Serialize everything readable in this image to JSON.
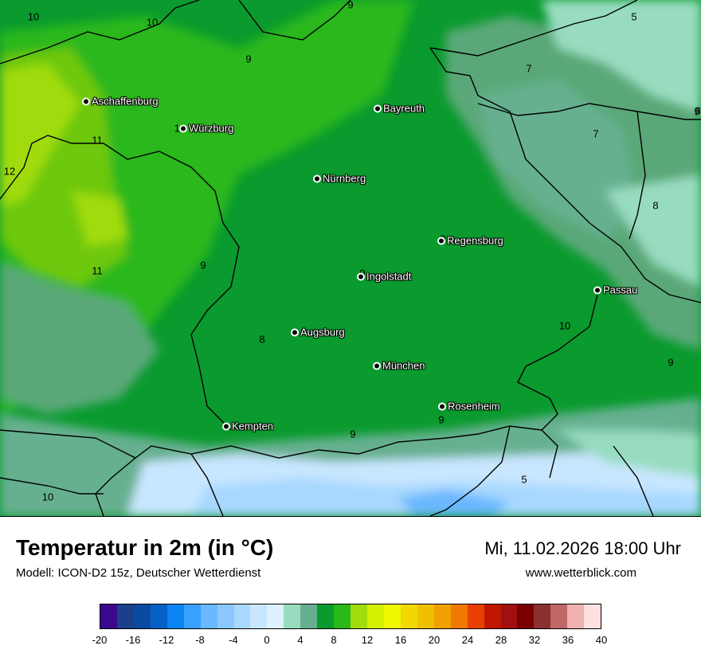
{
  "title": "Temperatur in 2m (in °C)",
  "model": "Modell: ICON-D2 15z, Deutscher Wetterdienst",
  "datetime": "Mi, 11.02.2026 18:00 Uhr",
  "site": "www.wetterblick.com",
  "cities": [
    {
      "name": "Aschaffenburg"
    },
    {
      "name": "Würzburg"
    },
    {
      "name": "Bayreuth"
    },
    {
      "name": "Nürnberg"
    },
    {
      "name": "Regensburg"
    },
    {
      "name": "Ingolstadt"
    },
    {
      "name": "Passau"
    },
    {
      "name": "Augsburg"
    },
    {
      "name": "München"
    },
    {
      "name": "Rosenheim"
    },
    {
      "name": "Kempten"
    }
  ],
  "iso_labels": [
    "10",
    "10",
    "9",
    "5",
    "9",
    "7",
    "7",
    "8",
    "10",
    "11",
    "12",
    "9",
    "11",
    "9",
    "8",
    "8",
    "10",
    "9",
    "9",
    "5",
    "10",
    "9",
    "9",
    "9"
  ],
  "legend": {
    "ticks": [
      "-20",
      "-16",
      "-12",
      "-8",
      "-4",
      "0",
      "4",
      "8",
      "12",
      "16",
      "20",
      "24",
      "28",
      "32",
      "36",
      "40"
    ],
    "colors": [
      "#3b0a8c",
      "#1c3f8c",
      "#0a4aa0",
      "#0660c8",
      "#0a84f0",
      "#3aa0ff",
      "#6ab8ff",
      "#8ac8ff",
      "#a8d8ff",
      "#c8e6ff",
      "#dff0ff",
      "#98dcc0",
      "#66b090",
      "#0a9a2e",
      "#2ab81a",
      "#a0dc0a",
      "#d2f000",
      "#f0f800",
      "#f0d800",
      "#f0c000",
      "#f0a000",
      "#f07800",
      "#e84000",
      "#c01800",
      "#a01010",
      "#7a0000",
      "#8a3030",
      "#c06868",
      "#f0b0b0",
      "#ffe0e0"
    ]
  }
}
